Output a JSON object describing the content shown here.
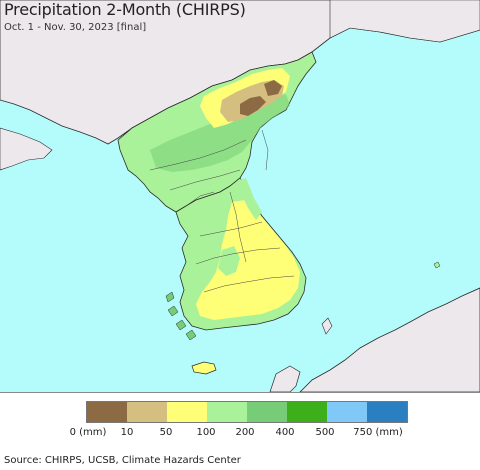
{
  "title": "Precipitation 2-Month (CHIRPS)",
  "subtitle": "Oct. 1 - Nov. 30, 2023 [final]",
  "legend": {
    "swatches": [
      {
        "color": "#8B6A44"
      },
      {
        "color": "#D4BF80"
      },
      {
        "color": "#FFFF77"
      },
      {
        "color": "#AAF29A"
      },
      {
        "color": "#77CD77"
      },
      {
        "color": "#3DAF1A"
      },
      {
        "color": "#7FC8F8"
      },
      {
        "color": "#2A7FC0"
      }
    ],
    "labels": [
      "0 (mm)",
      "10",
      "50",
      "100",
      "200",
      "400",
      "500",
      "750 (mm)"
    ]
  },
  "source": "Source: CHIRPS, UCSB, Climate Hazards Center",
  "colors": {
    "ocean": "#B4FBFB",
    "land_outside": "#EDE8EC",
    "border": "#2a2a2a"
  }
}
